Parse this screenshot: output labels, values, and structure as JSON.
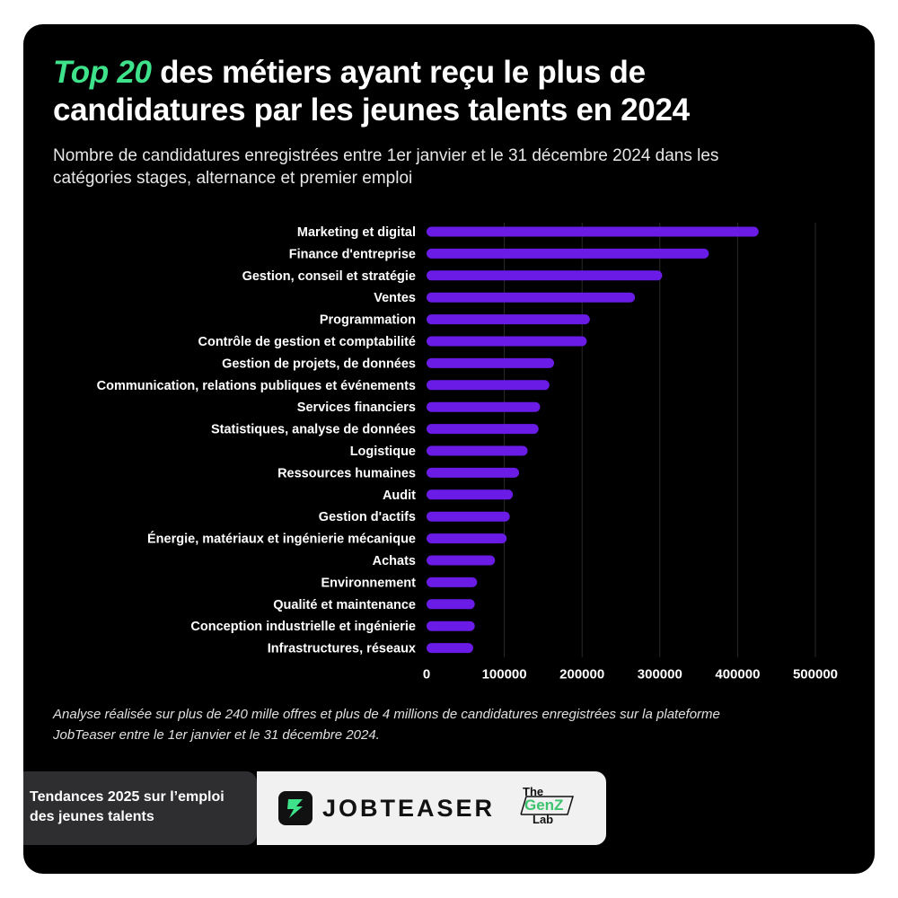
{
  "header": {
    "title_highlight": "Top 20",
    "title_rest": " des métiers ayant reçu le plus de candidatures par les jeunes talents en 2024",
    "subtitle": "Nombre de candidatures enregistrées entre 1er janvier et le 31 décembre 2024 dans les catégories stages, alternance et premier emploi"
  },
  "colors": {
    "background": "#000000",
    "bar": "#6a1ce6",
    "highlight": "#3ee28a",
    "text": "#ffffff"
  },
  "chart_data": {
    "type": "bar",
    "orientation": "horizontal",
    "categories": [
      "Marketing et digital",
      "Finance d'entreprise",
      "Gestion, conseil et stratégie",
      "Ventes",
      "Programmation",
      "Contrôle de gestion et comptabilité",
      "Gestion de projets, de données",
      "Communication, relations publiques et événements",
      "Services financiers",
      "Statistiques, analyse de données",
      "Logistique",
      "Ressources humaines",
      "Audit",
      "Gestion d'actifs",
      "Énergie, matériaux et ingénierie mécanique",
      "Achats",
      "Environnement",
      "Qualité et maintenance",
      "Conception industrielle et ingénierie",
      "Infrastructures, réseaux"
    ],
    "values": [
      427000,
      363000,
      303000,
      268000,
      210000,
      206000,
      164000,
      158000,
      146000,
      144000,
      130000,
      119000,
      111000,
      107000,
      103000,
      88000,
      65000,
      62000,
      62000,
      60000
    ],
    "xticks": [
      "0",
      "100000",
      "200000",
      "300000",
      "400000",
      "500000"
    ],
    "xlim": [
      0,
      500000
    ],
    "grid": "vertical",
    "legend": "none"
  },
  "note": "Analyse réalisée sur plus de 240 mille offres et plus de 4 millions de candidatures enregistrées sur la plateforme JobTeaser entre le 1er janvier et le 31 décembre 2024.",
  "footer": {
    "tagline": "Tendances 2025 sur l’emploi des jeunes talents",
    "brand": "JOBTEASER",
    "icon": "jobteaser-logo-icon",
    "partner_the": "The",
    "partner_mid": "GenZ",
    "partner_lab": "Lab"
  }
}
